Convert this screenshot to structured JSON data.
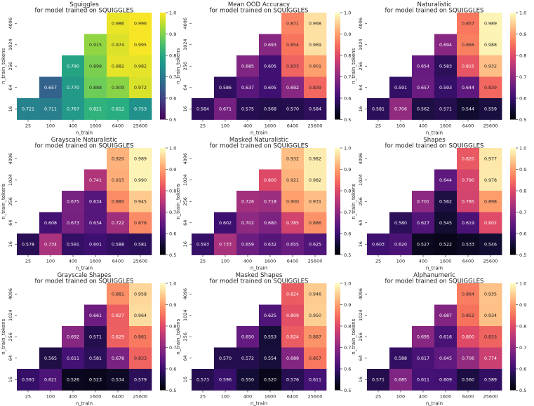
{
  "chart_data": [
    {
      "type": "heatmap",
      "title": "Squiggles",
      "subtitle": "for model trained on SQUIGGLES",
      "xlabel": "n_train",
      "ylabel": "n_train_tokens",
      "colormap": "viridis",
      "x": [
        "25",
        "100",
        "400",
        "1600",
        "6400",
        "25600"
      ],
      "y": [
        "4096",
        "1024",
        "256",
        "64",
        "16"
      ],
      "values": [
        [
          null,
          null,
          null,
          null,
          0.986,
          0.996
        ],
        [
          null,
          null,
          null,
          0.915,
          0.974,
          0.995
        ],
        [
          null,
          null,
          0.79,
          0.899,
          0.982,
          0.982
        ],
        [
          null,
          0.657,
          0.77,
          0.888,
          0.909,
          0.972
        ],
        [
          0.721,
          0.711,
          0.767,
          0.821,
          0.812,
          0.753
        ]
      ],
      "vmin": 0.5,
      "vmax": 1.0,
      "colorbar_ticks": [
        "0.5",
        "0.6",
        "0.7",
        "0.8",
        "0.9",
        "1.0"
      ]
    },
    {
      "type": "heatmap",
      "title": "Mean OOD Accuracy",
      "subtitle": "for model trained on SQUIGGLES",
      "xlabel": "n_train",
      "ylabel": "n_train_tokens",
      "colormap": "magma",
      "x": [
        "25",
        "100",
        "400",
        "1600",
        "6400",
        "25600"
      ],
      "y": [
        "4096",
        "1024",
        "256",
        "64",
        "16"
      ],
      "values": [
        [
          null,
          null,
          null,
          null,
          0.871,
          0.968
        ],
        [
          null,
          null,
          null,
          0.693,
          0.854,
          0.969
        ],
        [
          null,
          null,
          0.685,
          0.605,
          0.833,
          0.901
        ],
        [
          null,
          0.586,
          0.637,
          0.605,
          0.692,
          0.839
        ],
        [
          0.584,
          0.671,
          0.575,
          0.568,
          0.57,
          0.584
        ]
      ],
      "vmin": 0.5,
      "vmax": 1.0,
      "colorbar_ticks": [
        "0.5",
        "0.6",
        "0.7",
        "0.8",
        "0.9",
        "1.0"
      ]
    },
    {
      "type": "heatmap",
      "title": "Naturalistic",
      "subtitle": "for model trained on SQUIGGLES",
      "xlabel": "n_train",
      "ylabel": "n_train_tokens",
      "colormap": "magma",
      "x": [
        "25",
        "100",
        "400",
        "1600",
        "6400",
        "25600"
      ],
      "y": [
        "4096",
        "1024",
        "256",
        "64",
        "16"
      ],
      "values": [
        [
          null,
          null,
          null,
          null,
          0.857,
          0.989
        ],
        [
          null,
          null,
          null,
          0.694,
          0.866,
          0.988
        ],
        [
          null,
          null,
          0.654,
          0.583,
          0.815,
          0.932
        ],
        [
          null,
          0.591,
          0.657,
          0.593,
          0.644,
          0.839
        ],
        [
          0.581,
          0.706,
          0.562,
          0.571,
          0.544,
          0.559
        ]
      ],
      "vmin": 0.5,
      "vmax": 1.0,
      "colorbar_ticks": [
        "0.5",
        "0.6",
        "0.7",
        "0.8",
        "0.9",
        "1.0"
      ]
    },
    {
      "type": "heatmap",
      "title": "Grayscale Naturalistic",
      "subtitle": "for model trained on SQUIGGLES",
      "xlabel": "n_train",
      "ylabel": "n_train_tokens",
      "colormap": "magma",
      "x": [
        "25",
        "100",
        "400",
        "1600",
        "6400",
        "25600"
      ],
      "y": [
        "4096",
        "1024",
        "256",
        "64",
        "16"
      ],
      "values": [
        [
          null,
          null,
          null,
          null,
          0.92,
          0.989
        ],
        [
          null,
          null,
          null,
          0.741,
          0.915,
          0.99
        ],
        [
          null,
          null,
          0.675,
          0.634,
          0.88,
          0.945
        ],
        [
          null,
          0.608,
          0.673,
          0.634,
          0.722,
          0.878
        ],
        [
          0.578,
          0.734,
          0.591,
          0.601,
          0.588,
          0.581
        ]
      ],
      "vmin": 0.5,
      "vmax": 1.0,
      "colorbar_ticks": [
        "0.5",
        "0.6",
        "0.7",
        "0.8",
        "0.9",
        "1.0"
      ]
    },
    {
      "type": "heatmap",
      "title": "Masked Naturalistic",
      "subtitle": "for model trained on SQUIGGLES",
      "xlabel": "n_train",
      "ylabel": "n_train_tokens",
      "colormap": "magma",
      "x": [
        "25",
        "100",
        "400",
        "1600",
        "6400",
        "25600"
      ],
      "y": [
        "4096",
        "1024",
        "256",
        "64",
        "16"
      ],
      "values": [
        [
          null,
          null,
          null,
          null,
          0.932,
          0.982
        ],
        [
          null,
          null,
          null,
          0.8,
          0.921,
          0.982
        ],
        [
          null,
          null,
          0.726,
          0.718,
          0.9,
          0.931
        ],
        [
          null,
          0.602,
          0.702,
          0.68,
          0.785,
          0.886
        ],
        [
          0.593,
          0.733,
          0.659,
          0.632,
          0.655,
          0.625
        ]
      ],
      "vmin": 0.5,
      "vmax": 1.0,
      "colorbar_ticks": [
        "0.5",
        "0.6",
        "0.7",
        "0.8",
        "0.9",
        "1.0"
      ]
    },
    {
      "type": "heatmap",
      "title": "Shapes",
      "subtitle": "for model trained on SQUIGGLES",
      "xlabel": "n_train",
      "ylabel": "n_train_tokens",
      "colormap": "magma",
      "x": [
        "25",
        "100",
        "400",
        "1600",
        "6400",
        "25600"
      ],
      "y": [
        "4096",
        "1024",
        "256",
        "64",
        "16"
      ],
      "values": [
        [
          null,
          null,
          null,
          null,
          0.82,
          0.977
        ],
        [
          null,
          null,
          null,
          0.644,
          0.79,
          0.978
        ],
        [
          null,
          null,
          0.701,
          0.562,
          0.785,
          0.898
        ],
        [
          null,
          0.58,
          0.627,
          0.545,
          0.619,
          0.802
        ],
        [
          0.603,
          0.62,
          0.527,
          0.522,
          0.533,
          0.546
        ]
      ],
      "vmin": 0.5,
      "vmax": 1.0,
      "colorbar_ticks": [
        "0.5",
        "0.6",
        "0.7",
        "0.8",
        "0.9",
        "1.0"
      ]
    },
    {
      "type": "heatmap",
      "title": "Grayscale Shapes",
      "subtitle": "for model trained on SQUIGGLES",
      "xlabel": "n_train",
      "ylabel": "n_train_tokens",
      "colormap": "magma",
      "x": [
        "25",
        "100",
        "400",
        "1600",
        "6400",
        "25600"
      ],
      "y": [
        "4096",
        "1024",
        "256",
        "64",
        "16"
      ],
      "values": [
        [
          null,
          null,
          null,
          null,
          0.881,
          0.958
        ],
        [
          null,
          null,
          null,
          0.661,
          0.827,
          0.964
        ],
        [
          null,
          null,
          0.692,
          0.571,
          0.829,
          0.861
        ],
        [
          null,
          0.565,
          0.611,
          0.581,
          0.678,
          0.833
        ],
        [
          0.593,
          0.621,
          0.526,
          0.523,
          0.534,
          0.579
        ]
      ],
      "vmin": 0.5,
      "vmax": 1.0,
      "colorbar_ticks": [
        "0.5",
        "0.6",
        "0.7",
        "0.8",
        "0.9",
        "1.0"
      ]
    },
    {
      "type": "heatmap",
      "title": "Masked Shapes",
      "subtitle": "for model trained on SQUIGGLES",
      "xlabel": "n_train",
      "ylabel": "n_train_tokens",
      "colormap": "magma",
      "x": [
        "25",
        "100",
        "400",
        "1600",
        "6400",
        "25600"
      ],
      "y": [
        "4096",
        "1024",
        "256",
        "64",
        "16"
      ],
      "values": [
        [
          null,
          null,
          null,
          null,
          0.824,
          0.946
        ],
        [
          null,
          null,
          null,
          0.625,
          0.809,
          0.95
        ],
        [
          null,
          null,
          0.65,
          0.553,
          0.824,
          0.887
        ],
        [
          null,
          0.57,
          0.572,
          0.554,
          0.689,
          0.857
        ],
        [
          0.573,
          0.596,
          0.55,
          0.52,
          0.576,
          0.611
        ]
      ],
      "vmin": 0.5,
      "vmax": 1.0,
      "colorbar_ticks": [
        "0.5",
        "0.6",
        "0.7",
        "0.8",
        "0.9",
        "1.0"
      ]
    },
    {
      "type": "heatmap",
      "title": "Alphanumeric",
      "subtitle": "for model trained on SQUIGGLES",
      "xlabel": "n_train",
      "ylabel": "n_train_tokens",
      "colormap": "magma",
      "x": [
        "25",
        "100",
        "400",
        "1600",
        "6400",
        "25600"
      ],
      "y": [
        "4096",
        "1024",
        "256",
        "64",
        "16"
      ],
      "values": [
        [
          null,
          null,
          null,
          null,
          0.864,
          0.935
        ],
        [
          null,
          null,
          null,
          0.687,
          0.852,
          0.934
        ],
        [
          null,
          null,
          0.695,
          0.616,
          0.8,
          0.833
        ],
        [
          null,
          0.588,
          0.617,
          0.645,
          0.706,
          0.774
        ],
        [
          0.571,
          0.685,
          0.611,
          0.609,
          0.56,
          0.589
        ]
      ],
      "vmin": 0.5,
      "vmax": 1.0,
      "colorbar_ticks": [
        "0.5",
        "0.6",
        "0.7",
        "0.8",
        "0.9",
        "1.0"
      ]
    }
  ]
}
